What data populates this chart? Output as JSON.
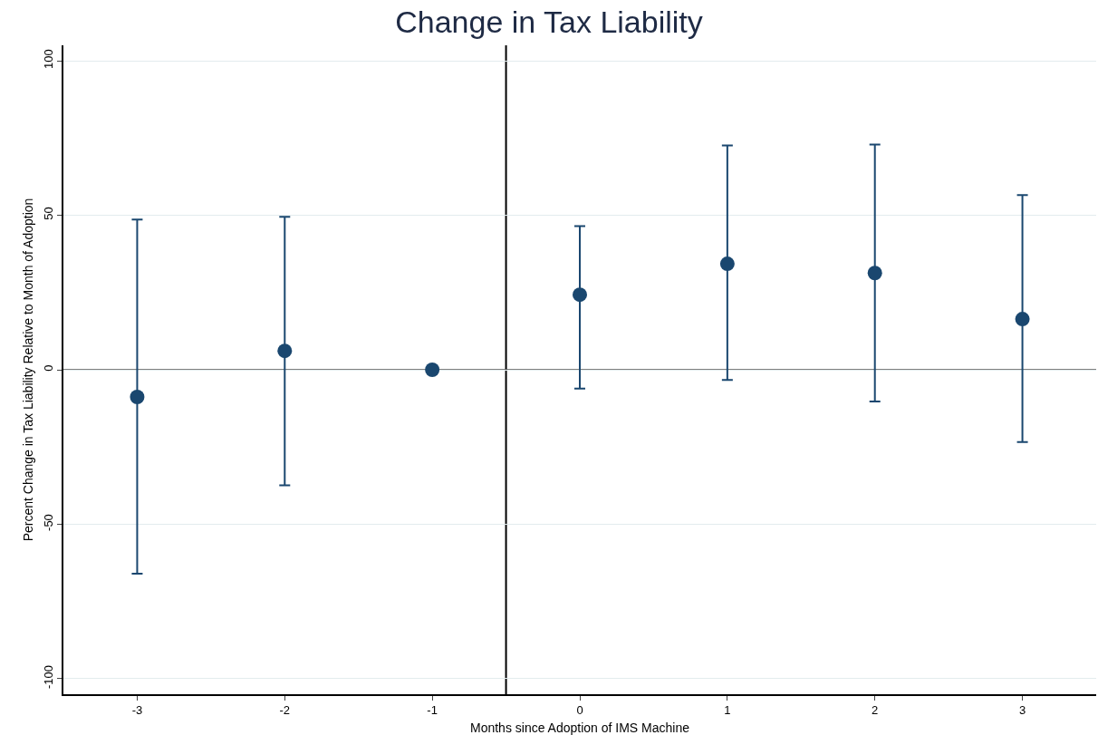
{
  "chart_data": {
    "type": "scatter",
    "title": "Change in Tax Liability",
    "xlabel": "Months since Adoption of IMS Machine",
    "ylabel": "Percent Change in Tax Liability Relative to Month of Adoption",
    "x": [
      -3,
      -2,
      -1,
      0,
      1,
      2,
      3
    ],
    "series": [
      {
        "color": "#1a476f",
        "values": [
          -8.8,
          6.1,
          0,
          24.3,
          34.3,
          31.3,
          16.4
        ],
        "errors": [
          [
            -66,
            48.6
          ],
          [
            -37.4,
            49.5
          ],
          null,
          [
            -6.1,
            46.5
          ],
          [
            -3.3,
            72.6
          ],
          [
            -10.3,
            72.9
          ],
          [
            -23.4,
            56.5
          ]
        ]
      }
    ],
    "xlim": [
      -3.5,
      3.5
    ],
    "xticks": [
      -3,
      -2,
      -1,
      0,
      1,
      2,
      3
    ],
    "ylim": [
      -105,
      105
    ],
    "yticks": [
      -100,
      -50,
      0,
      50,
      100
    ],
    "grid": "y",
    "marker": "circle",
    "legend": false,
    "ref_lines": [
      {
        "axis": "x",
        "value": -0.5,
        "color": "#000000"
      },
      {
        "axis": "y",
        "value": 0,
        "color": "#555555"
      }
    ]
  }
}
